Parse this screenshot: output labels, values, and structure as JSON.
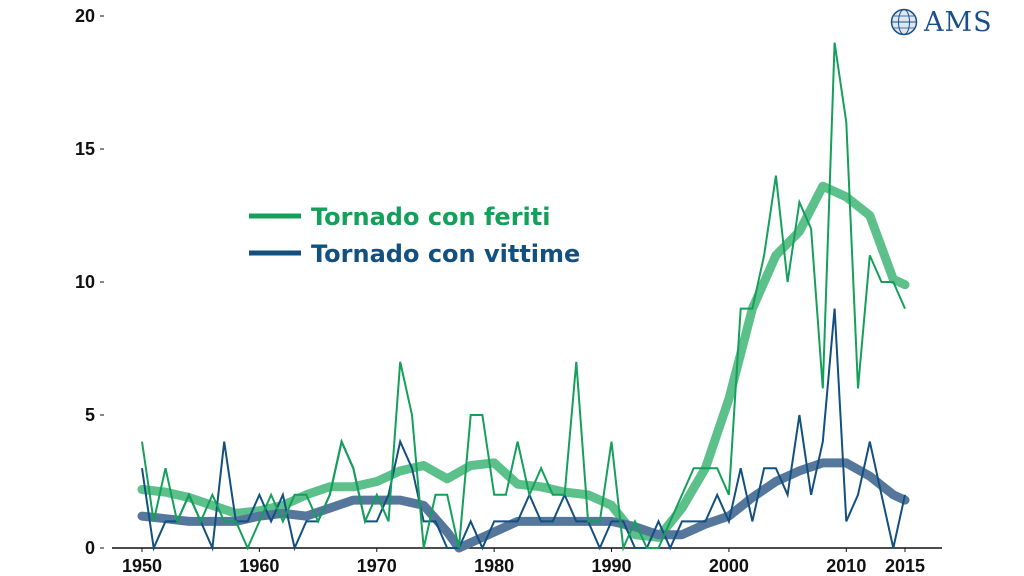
{
  "logo": {
    "text": "AMS",
    "color": "#1a4f8a"
  },
  "chart_data": {
    "type": "line",
    "title": "",
    "xlabel": "",
    "ylabel": "",
    "xlim": [
      1950,
      2015
    ],
    "ylim": [
      0,
      20
    ],
    "x_ticks": [
      1950,
      1960,
      1970,
      1980,
      1990,
      2000,
      2010,
      2015
    ],
    "y_ticks": [
      0,
      5,
      10,
      15,
      20
    ],
    "grid": false,
    "legend_position": "upper-left",
    "series": [
      {
        "name": "Tornado con feriti",
        "color": "#14a05a",
        "smooth_color": "#5cc08a",
        "x": [
          1950,
          1951,
          1952,
          1953,
          1954,
          1955,
          1956,
          1957,
          1958,
          1959,
          1960,
          1961,
          1962,
          1963,
          1964,
          1965,
          1966,
          1967,
          1968,
          1969,
          1970,
          1971,
          1972,
          1973,
          1974,
          1975,
          1976,
          1977,
          1978,
          1979,
          1980,
          1981,
          1982,
          1983,
          1984,
          1985,
          1986,
          1987,
          1988,
          1989,
          1990,
          1991,
          1992,
          1993,
          1994,
          1995,
          1996,
          1997,
          1998,
          1999,
          2000,
          2001,
          2002,
          2003,
          2004,
          2005,
          2006,
          2007,
          2008,
          2009,
          2010,
          2011,
          2012,
          2013,
          2014,
          2015
        ],
        "values": [
          4,
          1,
          3,
          1,
          2,
          1,
          2,
          1,
          1,
          0,
          1,
          2,
          1,
          2,
          2,
          1,
          2,
          4,
          3,
          1,
          2,
          1,
          7,
          5,
          0,
          2,
          2,
          0,
          5,
          5,
          2,
          2,
          4,
          2,
          3,
          2,
          2,
          7,
          1,
          1,
          4,
          0,
          1,
          0,
          0,
          1,
          2,
          3,
          3,
          3,
          2,
          9,
          9,
          11,
          14,
          10,
          13,
          12,
          6,
          19,
          16,
          6,
          11,
          10,
          10,
          9
        ],
        "smooth_x": [
          1950,
          1952,
          1954,
          1956,
          1958,
          1960,
          1962,
          1964,
          1966,
          1968,
          1970,
          1972,
          1974,
          1976,
          1978,
          1980,
          1982,
          1984,
          1986,
          1988,
          1990,
          1992,
          1994,
          1996,
          1998,
          2000,
          2002,
          2004,
          2006,
          2008,
          2010,
          2012,
          2014,
          2015
        ],
        "smooth_values": [
          2.2,
          2.1,
          1.9,
          1.6,
          1.3,
          1.4,
          1.6,
          2.0,
          2.3,
          2.3,
          2.5,
          2.9,
          3.1,
          2.6,
          3.1,
          3.2,
          2.4,
          2.3,
          2.1,
          2.0,
          1.6,
          0.5,
          0.4,
          1.5,
          3.0,
          5.6,
          9.0,
          11.0,
          11.9,
          13.6,
          13.2,
          12.5,
          10.1,
          9.9
        ]
      },
      {
        "name": "Tornado con vittime",
        "color": "#12507f",
        "smooth_color": "#56779c",
        "x": [
          1950,
          1951,
          1952,
          1953,
          1954,
          1955,
          1956,
          1957,
          1958,
          1959,
          1960,
          1961,
          1962,
          1963,
          1964,
          1965,
          1966,
          1967,
          1968,
          1969,
          1970,
          1971,
          1972,
          1973,
          1974,
          1975,
          1976,
          1977,
          1978,
          1979,
          1980,
          1981,
          1982,
          1983,
          1984,
          1985,
          1986,
          1987,
          1988,
          1989,
          1990,
          1991,
          1992,
          1993,
          1994,
          1995,
          1996,
          1997,
          1998,
          1999,
          2000,
          2001,
          2002,
          2003,
          2004,
          2005,
          2006,
          2007,
          2008,
          2009,
          2010,
          2011,
          2012,
          2013,
          2014,
          2015
        ],
        "values": [
          3,
          0,
          1,
          1,
          2,
          1,
          0,
          4,
          1,
          1,
          2,
          1,
          2,
          0,
          1,
          1,
          2,
          4,
          3,
          1,
          1,
          2,
          4,
          3,
          1,
          1,
          0,
          0,
          1,
          0,
          1,
          1,
          1,
          2,
          1,
          1,
          2,
          1,
          1,
          0,
          1,
          1,
          0,
          0,
          1,
          0,
          1,
          1,
          1,
          2,
          1,
          3,
          1,
          3,
          3,
          2,
          5,
          2,
          4,
          9,
          1,
          2,
          4,
          2,
          0,
          2
        ],
        "smooth_x": [
          1950,
          1952,
          1954,
          1956,
          1958,
          1960,
          1962,
          1964,
          1966,
          1968,
          1970,
          1972,
          1974,
          1976,
          1977,
          1978,
          1980,
          1982,
          1984,
          1986,
          1988,
          1990,
          1992,
          1994,
          1996,
          1998,
          2000,
          2002,
          2004,
          2006,
          2008,
          2010,
          2012,
          2014,
          2015
        ],
        "smooth_values": [
          1.2,
          1.1,
          1.0,
          1.0,
          1.0,
          1.2,
          1.3,
          1.2,
          1.5,
          1.8,
          1.8,
          1.8,
          1.6,
          0.6,
          0.0,
          0.2,
          0.6,
          1.0,
          1.0,
          1.0,
          1.0,
          1.0,
          0.8,
          0.5,
          0.5,
          0.9,
          1.2,
          1.9,
          2.5,
          2.9,
          3.2,
          3.2,
          2.7,
          2.0,
          1.8
        ]
      }
    ]
  }
}
